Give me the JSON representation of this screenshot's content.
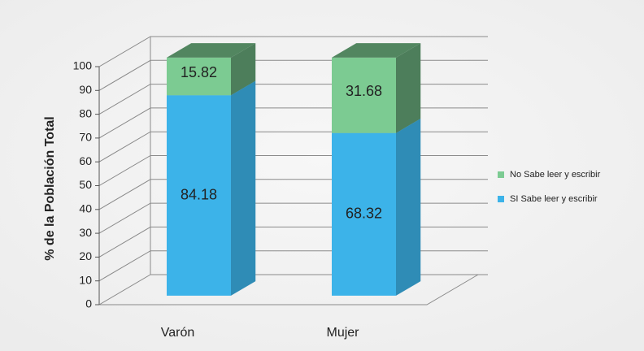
{
  "chart_data": {
    "type": "bar3d_stacked",
    "y_label": "% de la Población Total",
    "categories": [
      "Varón",
      "Mujer"
    ],
    "series": [
      {
        "name": "SI Sabe leer y escribir",
        "color": "#3cb3e9",
        "values": [
          84.18,
          68.32
        ]
      },
      {
        "name": "No Sabe leer y escribir",
        "color": "#7ccb92",
        "values": [
          15.82,
          31.68
        ]
      }
    ],
    "ylim": [
      0,
      100
    ],
    "yticks": [
      0,
      10,
      20,
      30,
      40,
      50,
      60,
      70,
      80,
      90,
      100
    ],
    "grid": true,
    "legend": "right"
  }
}
